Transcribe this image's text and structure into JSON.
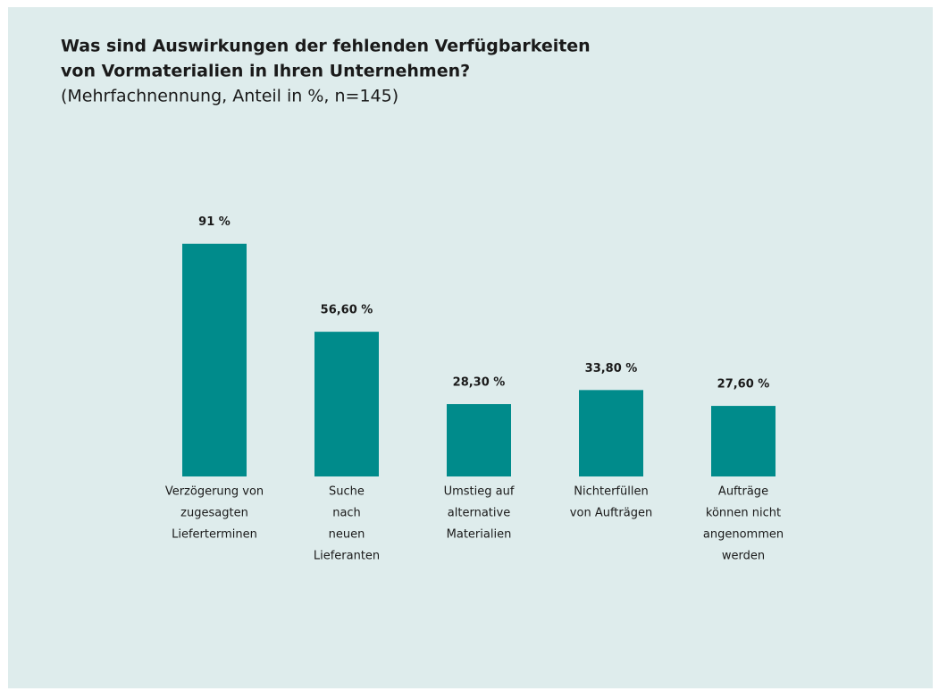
{
  "chart_data": {
    "type": "bar",
    "title": [
      "Was sind Auswirkungen der fehlenden Verfügbarkeiten",
      "von Vormaterialien in Ihren Unternehmen?"
    ],
    "subtitle": "(Mehrfachnennung, Anteil in %, n=145)",
    "categories": [
      [
        "Verzögerung von",
        "zugesagten",
        "Lieferterminen"
      ],
      [
        "Suche",
        "nach",
        "neuen",
        "Lieferanten"
      ],
      [
        "Umstieg auf",
        "alternative",
        "Materialien"
      ],
      [
        "Nichterfüllen",
        "von Aufträgen"
      ],
      [
        "Aufträge",
        "können nicht",
        "angenommen",
        "werden"
      ]
    ],
    "values": [
      91,
      56.6,
      28.3,
      33.8,
      27.6
    ],
    "value_labels": [
      "91 %",
      "56,60 %",
      "28,30 %",
      "33,80 %",
      "27,60 %"
    ],
    "color": "#008b8b",
    "ylim": [
      0,
      100
    ]
  }
}
